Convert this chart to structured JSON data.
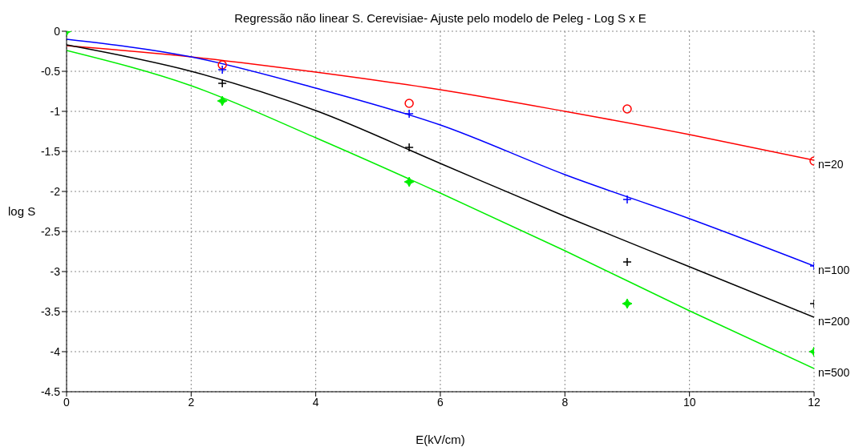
{
  "chart_data": {
    "type": "line",
    "title": "Regressão não linear S. Cerevisiae- Ajuste pelo modelo de Peleg - Log S x E",
    "xlabel": "E(kV/cm)",
    "ylabel": "log S",
    "xlim": [
      0,
      12
    ],
    "xticks": [
      0,
      2,
      4,
      6,
      8,
      10,
      12
    ],
    "ylim": [
      -4.5,
      0
    ],
    "yticks": [
      0,
      -0.5,
      -1,
      -1.5,
      -2,
      -2.5,
      -3,
      -3.5,
      -4,
      -4.5
    ],
    "grid": true,
    "series": [
      {
        "type": "scatter",
        "color": "#ff0000",
        "marker": "circle",
        "x": [
          2.5,
          5.5,
          9,
          12
        ],
        "values": [
          -0.42,
          -0.9,
          -0.97,
          -1.62
        ]
      },
      {
        "type": "scatter",
        "color": "#0000ff",
        "marker": "cross",
        "x": [
          2.5,
          5.5,
          9,
          12
        ],
        "values": [
          -0.48,
          -1.03,
          -2.1,
          -2.93
        ]
      },
      {
        "type": "scatter",
        "color": "#000000",
        "marker": "cross",
        "x": [
          2.5,
          5.5,
          9,
          12
        ],
        "values": [
          -0.65,
          -1.45,
          -2.88,
          -3.4
        ]
      },
      {
        "type": "scatter",
        "color": "#00ee00",
        "marker": "star",
        "x": [
          0,
          2.5,
          5.5,
          9,
          12
        ],
        "values": [
          0,
          -0.87,
          -1.88,
          -3.4,
          -4.0
        ]
      },
      {
        "name": "n=20",
        "color": "#ff0000",
        "marker": "none",
        "x": [
          0,
          2,
          4,
          6,
          8,
          10,
          12
        ],
        "values": [
          -0.18,
          -0.32,
          -0.51,
          -0.73,
          -1.0,
          -1.29,
          -1.61
        ]
      },
      {
        "name": "n=100",
        "color": "#0000ff",
        "marker": "none",
        "x": [
          0,
          2,
          4,
          6,
          8,
          10,
          12
        ],
        "values": [
          -0.1,
          -0.32,
          -0.71,
          -1.17,
          -1.79,
          -2.34,
          -2.93
        ]
      },
      {
        "name": "n=200",
        "color": "#000000",
        "marker": "none",
        "x": [
          0,
          2,
          4,
          6,
          8,
          10,
          12
        ],
        "values": [
          -0.17,
          -0.5,
          -0.99,
          -1.65,
          -2.31,
          -2.94,
          -3.57
        ]
      },
      {
        "name": "n=500",
        "color": "#00ee00",
        "marker": "none",
        "x": [
          0,
          2,
          4,
          6,
          8,
          10,
          12
        ],
        "values": [
          -0.24,
          -0.68,
          -1.33,
          -2.02,
          -2.74,
          -3.49,
          -4.21
        ]
      }
    ]
  }
}
